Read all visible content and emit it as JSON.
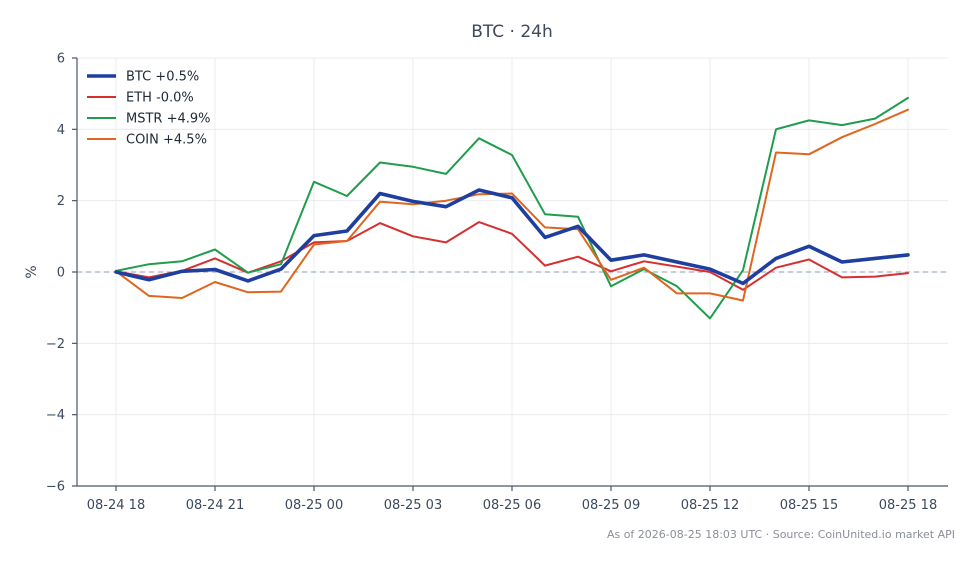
{
  "chart_data": {
    "type": "line",
    "title": "BTC · 24h",
    "ylabel": "%",
    "xlabel": "",
    "ylim": [
      -6,
      6
    ],
    "yticks": [
      6,
      4,
      2,
      0,
      -2,
      -4,
      -6
    ],
    "ytick_labels": [
      "6",
      "4",
      "2",
      "0",
      "−2",
      "−4",
      "−6"
    ],
    "x": [
      "08-24 18:00",
      "08-24 19:00",
      "08-24 20:00",
      "08-24 21:00",
      "08-24 22:00",
      "08-24 23:00",
      "08-25 00:00",
      "08-25 01:00",
      "08-25 02:00",
      "08-25 03:00",
      "08-25 04:00",
      "08-25 05:00",
      "08-25 06:00",
      "08-25 07:00",
      "08-25 08:00",
      "08-25 09:00",
      "08-25 10:00",
      "08-25 11:00",
      "08-25 12:00",
      "08-25 13:00",
      "08-25 14:00",
      "08-25 15:00",
      "08-25 16:00",
      "08-25 17:00",
      "08-25 18:00"
    ],
    "xticks": [
      "08-24 18",
      "08-24 21",
      "08-25 00",
      "08-25 03",
      "08-25 06",
      "08-25 09",
      "08-25 12",
      "08-25 15",
      "08-25 18"
    ],
    "grid": true,
    "legend_position": "top-left",
    "reference_line": 0,
    "series": [
      {
        "name": "BTC +0.5%",
        "color": "#1f3fa0",
        "bold": true,
        "values": [
          0.0,
          -0.22,
          0.02,
          0.07,
          -0.25,
          0.08,
          1.02,
          1.15,
          2.2,
          1.98,
          1.83,
          2.3,
          2.08,
          0.97,
          1.28,
          0.33,
          0.48,
          0.28,
          0.08,
          -0.32,
          0.38,
          0.72,
          0.28,
          0.38,
          0.48
        ]
      },
      {
        "name": "ETH -0.0%",
        "color": "#d62f2f",
        "bold": false,
        "values": [
          0.02,
          -0.15,
          0.03,
          0.38,
          -0.02,
          0.3,
          0.83,
          0.87,
          1.37,
          1.0,
          0.83,
          1.4,
          1.07,
          0.18,
          0.43,
          0.02,
          0.3,
          0.15,
          0.0,
          -0.5,
          0.12,
          0.35,
          -0.15,
          -0.13,
          -0.03
        ]
      },
      {
        "name": "MSTR +4.9%",
        "color": "#1f9d4c",
        "bold": false,
        "values": [
          0.03,
          0.22,
          0.3,
          0.63,
          -0.02,
          0.22,
          2.53,
          2.13,
          3.07,
          2.95,
          2.75,
          3.75,
          3.28,
          1.62,
          1.55,
          -0.4,
          0.08,
          -0.4,
          -1.3,
          0.05,
          4.0,
          4.25,
          4.12,
          4.3,
          4.88
        ]
      },
      {
        "name": "COIN +4.5%",
        "color": "#e0661e",
        "bold": false,
        "values": [
          0.02,
          -0.67,
          -0.73,
          -0.28,
          -0.57,
          -0.55,
          0.77,
          0.87,
          1.97,
          1.9,
          2.0,
          2.18,
          2.2,
          1.25,
          1.2,
          -0.22,
          0.12,
          -0.6,
          -0.6,
          -0.8,
          3.35,
          3.3,
          3.78,
          4.15,
          4.55
        ]
      }
    ]
  },
  "footnote": "As of 2026-08-25 18:03 UTC · Source: CoinUnited.io market API"
}
